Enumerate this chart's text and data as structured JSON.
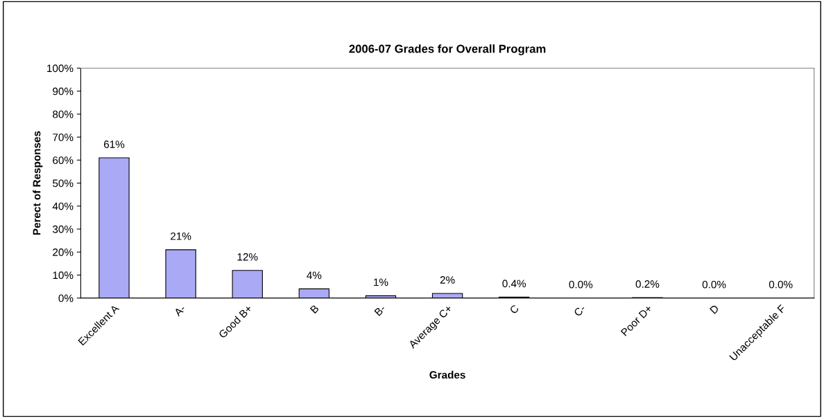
{
  "chart_data": {
    "type": "bar",
    "title": "2006-07 Grades for Overall Program",
    "xlabel": "Grades",
    "ylabel": "Perect of Responses",
    "categories": [
      "Excellent A",
      "A-",
      "Good B+",
      "B",
      "B-",
      "Average C+",
      "C",
      "C-",
      "Poor D+",
      "D",
      "Unacceptable F"
    ],
    "values": [
      61,
      21,
      12,
      4,
      1,
      2,
      0.4,
      0.0,
      0.2,
      0.0,
      0.0
    ],
    "value_labels": [
      "61%",
      "21%",
      "12%",
      "4%",
      "1%",
      "2%",
      "0.4%",
      "0.0%",
      "0.2%",
      "0.0%",
      "0.0%"
    ],
    "color": "#a9a9f5",
    "ylim": [
      0,
      100
    ],
    "yticks": [
      {
        "value": 0,
        "label": "0%"
      },
      {
        "value": 10,
        "label": "10%"
      },
      {
        "value": 20,
        "label": "20%"
      },
      {
        "value": 30,
        "label": "30%"
      },
      {
        "value": 40,
        "label": "40%"
      },
      {
        "value": 50,
        "label": "50%"
      },
      {
        "value": 60,
        "label": "60%"
      },
      {
        "value": 70,
        "label": "70%"
      },
      {
        "value": 80,
        "label": "80%"
      },
      {
        "value": 90,
        "label": "90%"
      },
      {
        "value": 100,
        "label": "100%"
      }
    ],
    "grid": false
  }
}
